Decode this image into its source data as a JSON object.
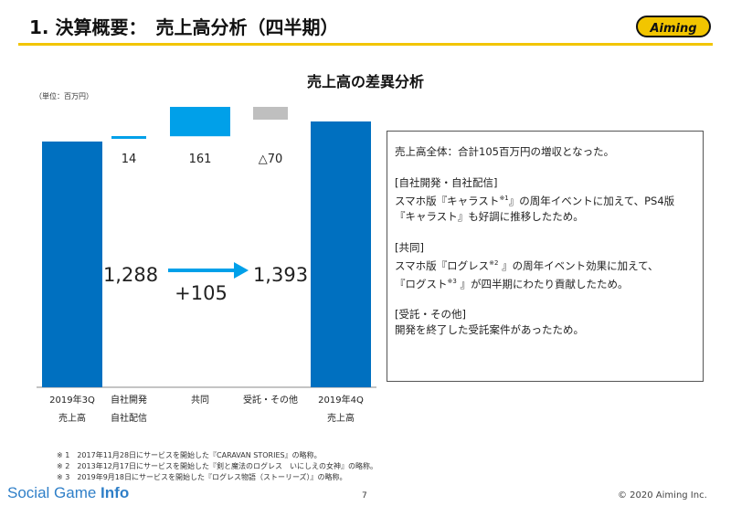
{
  "header": {
    "title": "1. 決算概要：　売上高分析（四半期）",
    "logo_text": "Aiming"
  },
  "chart_title": "売上高の差異分析",
  "unit_label": "（単位：百万円）",
  "chart_data": {
    "type": "bar",
    "subtype": "waterfall",
    "title": "売上高の差異分析",
    "ylabel": "（単位：百万円）",
    "categories": [
      [
        "2019年3Q",
        "売上高"
      ],
      [
        "自社開発",
        "自社配信"
      ],
      [
        "共同"
      ],
      [
        "受託・その他"
      ],
      [
        "2019年4Q",
        "売上高"
      ]
    ],
    "values": [
      1288,
      14,
      161,
      -70,
      1393
    ],
    "kinds": [
      "total",
      "delta",
      "delta",
      "delta",
      "total"
    ],
    "data_labels": [
      "1,288",
      "14",
      "161",
      "△70",
      "1,393"
    ],
    "change_label": "+105",
    "colors": {
      "total": "#0070c0",
      "increase": "#00a0e9",
      "decrease": "#bfbfbf",
      "negative_text": "#e02020"
    }
  },
  "notes": {
    "summary": "売上高全体：合計105百万円の増収となった。",
    "self_head": "[自社開発・自社配信]",
    "self_l1a": "スマホ版『キャラスト",
    "self_sup": "※1",
    "self_l1b": "』の周年イベントに加えて、PS4版",
    "self_l2": "『キャラスト』も好調に推移したため。",
    "joint_head": "[共同]",
    "joint_l1a": "スマホ版『ログレス",
    "joint_sup": "※2",
    "joint_l1b": " 』の周年イベント効果に加えて、",
    "joint_l2a": "『ログスト",
    "joint_sup2": "※3",
    "joint_l2b": " 』が四半期にわたり貢献したため。",
    "other_head": "[受託・その他]",
    "other_l1": "開発を終了した受託案件があったため。"
  },
  "footnotes": [
    "※ 1　2017年11月28日にサービスを開始した『CARAVAN STORIES』の略称。",
    "※ 2　2013年12月17日にサービスを開始した『剣と魔法のログレス　いにしえの女神』の略称。",
    "※ 3　2019年9月18日にサービスを開始した『ログレス物語（ストーリーズ）』の略称。"
  ],
  "footer": {
    "brand_a": "Social Game ",
    "brand_b": "Info",
    "page": "7",
    "copyright": "© 2020 Aiming Inc."
  }
}
